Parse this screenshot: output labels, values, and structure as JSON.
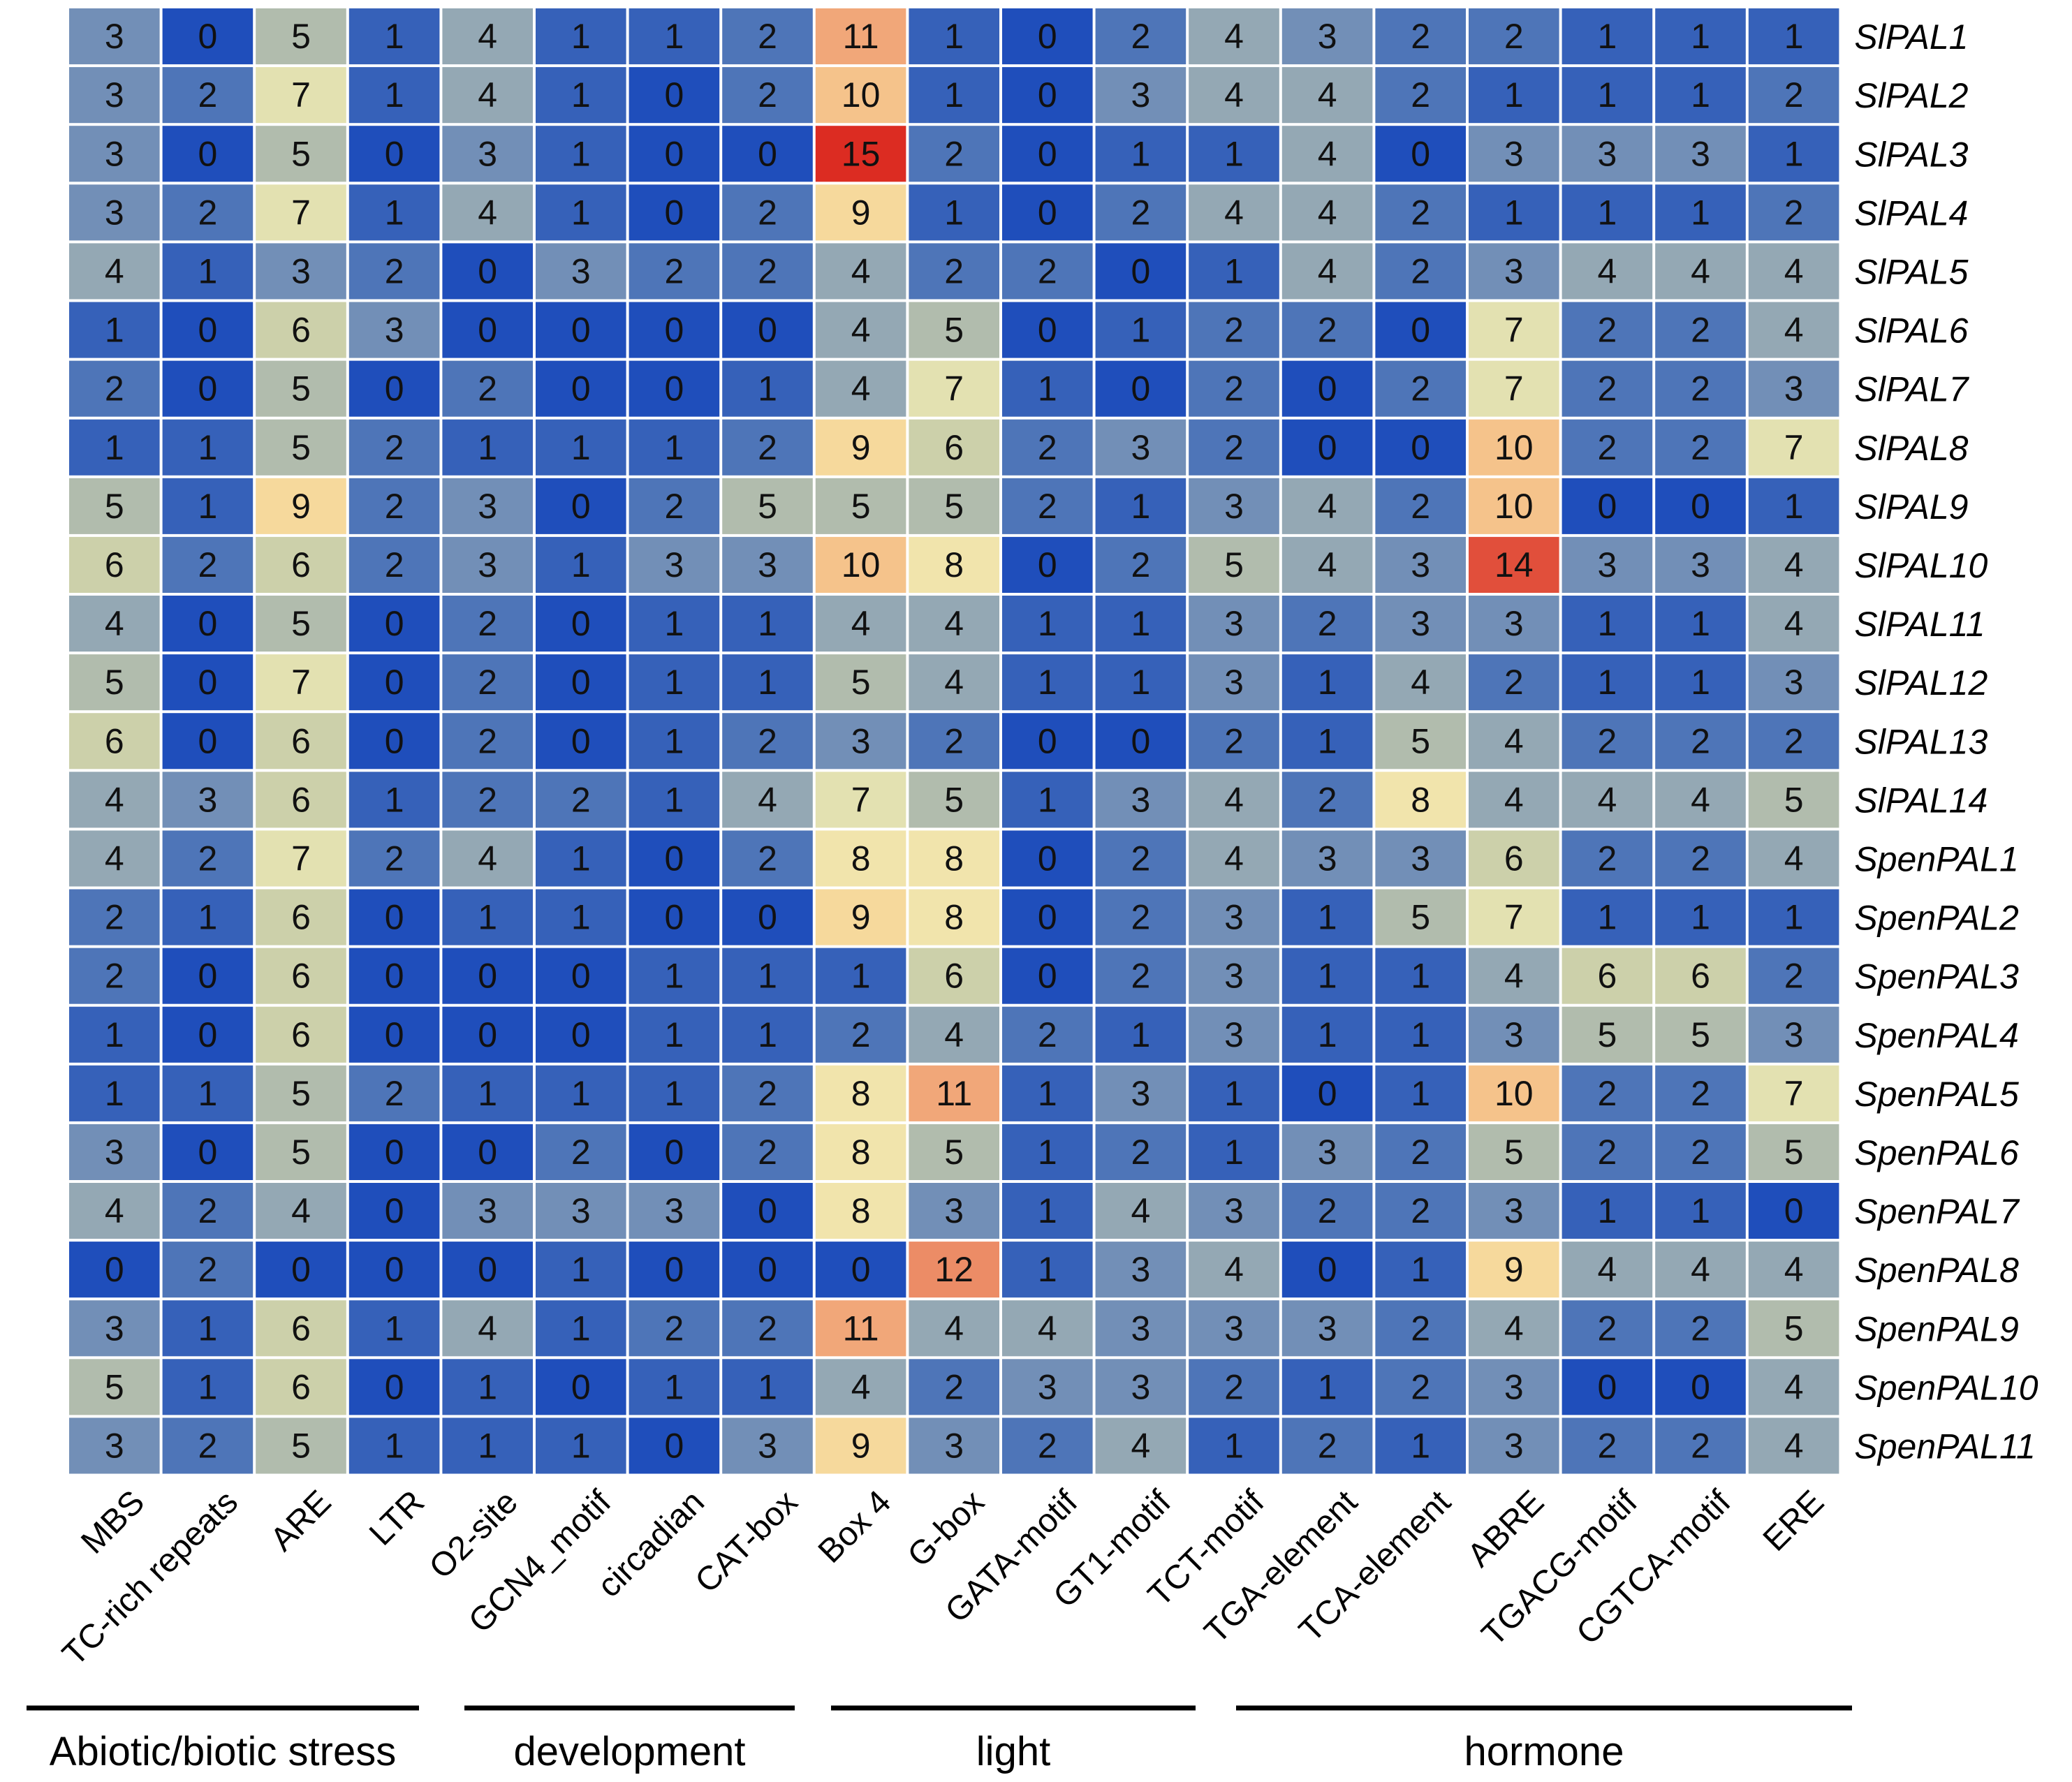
{
  "chart_data": {
    "type": "heatmap",
    "columns": [
      "MBS",
      "TC-rich repeats",
      "ARE",
      "LTR",
      "O2-site",
      "GCN4_motif",
      "circadian",
      "CAT-box",
      "Box 4",
      "G-box",
      "GATA-motif",
      "GT1-motif",
      "TCT-motif",
      "TGA-element",
      "TCA-element",
      "ABRE",
      "TGACG-motif",
      "CGTCA-motif",
      "ERE"
    ],
    "rows": [
      "SlPAL1",
      "SlPAL2",
      "SlPAL3",
      "SlPAL4",
      "SlPAL5",
      "SlPAL6",
      "SlPAL7",
      "SlPAL8",
      "SlPAL9",
      "SlPAL10",
      "SlPAL11",
      "SlPAL12",
      "SlPAL13",
      "SlPAL14",
      "SpenPAL1",
      "SpenPAL2",
      "SpenPAL3",
      "SpenPAL4",
      "SpenPAL5",
      "SpenPAL6",
      "SpenPAL7",
      "SpenPAL8",
      "SpenPAL9",
      "SpenPAL10",
      "SpenPAL11"
    ],
    "values": [
      [
        3,
        0,
        5,
        1,
        4,
        1,
        1,
        2,
        11,
        1,
        0,
        2,
        4,
        3,
        2,
        2,
        1,
        1,
        1
      ],
      [
        3,
        2,
        7,
        1,
        4,
        1,
        0,
        2,
        10,
        1,
        0,
        3,
        4,
        4,
        2,
        1,
        1,
        1,
        2
      ],
      [
        3,
        0,
        5,
        0,
        3,
        1,
        0,
        0,
        15,
        2,
        0,
        1,
        1,
        4,
        0,
        3,
        3,
        3,
        1
      ],
      [
        3,
        2,
        7,
        1,
        4,
        1,
        0,
        2,
        9,
        1,
        0,
        2,
        4,
        4,
        2,
        1,
        1,
        1,
        2
      ],
      [
        4,
        1,
        3,
        2,
        0,
        3,
        2,
        2,
        4,
        2,
        2,
        0,
        1,
        4,
        2,
        3,
        4,
        4,
        4
      ],
      [
        1,
        0,
        6,
        3,
        0,
        0,
        0,
        0,
        4,
        5,
        0,
        1,
        2,
        2,
        0,
        7,
        2,
        2,
        4
      ],
      [
        2,
        0,
        5,
        0,
        2,
        0,
        0,
        1,
        4,
        7,
        1,
        0,
        2,
        0,
        2,
        7,
        2,
        2,
        3
      ],
      [
        1,
        1,
        5,
        2,
        1,
        1,
        1,
        2,
        9,
        6,
        2,
        3,
        2,
        0,
        0,
        10,
        2,
        2,
        7
      ],
      [
        5,
        1,
        9,
        2,
        3,
        0,
        2,
        5,
        5,
        5,
        2,
        1,
        3,
        4,
        2,
        10,
        0,
        0,
        1
      ],
      [
        6,
        2,
        6,
        2,
        3,
        1,
        3,
        3,
        10,
        8,
        0,
        2,
        5,
        4,
        3,
        14,
        3,
        3,
        4
      ],
      [
        4,
        0,
        5,
        0,
        2,
        0,
        1,
        1,
        4,
        4,
        1,
        1,
        3,
        2,
        3,
        3,
        1,
        1,
        4
      ],
      [
        5,
        0,
        7,
        0,
        2,
        0,
        1,
        1,
        5,
        4,
        1,
        1,
        3,
        1,
        4,
        2,
        1,
        1,
        3
      ],
      [
        6,
        0,
        6,
        0,
        2,
        0,
        1,
        2,
        3,
        2,
        0,
        0,
        2,
        1,
        5,
        4,
        2,
        2,
        2
      ],
      [
        4,
        3,
        6,
        1,
        2,
        2,
        1,
        4,
        7,
        5,
        1,
        3,
        4,
        2,
        8,
        4,
        4,
        4,
        5
      ],
      [
        4,
        2,
        7,
        2,
        4,
        1,
        0,
        2,
        8,
        8,
        0,
        2,
        4,
        3,
        3,
        6,
        2,
        2,
        4
      ],
      [
        2,
        1,
        6,
        0,
        1,
        1,
        0,
        0,
        9,
        8,
        0,
        2,
        3,
        1,
        5,
        7,
        1,
        1,
        1
      ],
      [
        2,
        0,
        6,
        0,
        0,
        0,
        1,
        1,
        1,
        6,
        0,
        2,
        3,
        1,
        1,
        4,
        6,
        6,
        2
      ],
      [
        1,
        0,
        6,
        0,
        0,
        0,
        1,
        1,
        2,
        4,
        2,
        1,
        3,
        1,
        1,
        3,
        5,
        5,
        3
      ],
      [
        1,
        1,
        5,
        2,
        1,
        1,
        1,
        2,
        8,
        11,
        1,
        3,
        1,
        0,
        1,
        10,
        2,
        2,
        7
      ],
      [
        3,
        0,
        5,
        0,
        0,
        2,
        0,
        2,
        8,
        5,
        1,
        2,
        1,
        3,
        2,
        5,
        2,
        2,
        5
      ],
      [
        4,
        2,
        4,
        0,
        3,
        3,
        3,
        0,
        8,
        3,
        1,
        4,
        3,
        2,
        2,
        3,
        1,
        1,
        0
      ],
      [
        0,
        2,
        0,
        0,
        0,
        1,
        0,
        0,
        0,
        12,
        1,
        3,
        4,
        0,
        1,
        9,
        4,
        4,
        4
      ],
      [
        3,
        1,
        6,
        1,
        4,
        1,
        2,
        2,
        11,
        4,
        4,
        3,
        3,
        3,
        2,
        4,
        2,
        2,
        5
      ],
      [
        5,
        1,
        6,
        0,
        1,
        0,
        1,
        1,
        4,
        2,
        3,
        3,
        2,
        1,
        2,
        3,
        0,
        0,
        4
      ],
      [
        3,
        2,
        5,
        1,
        1,
        1,
        0,
        3,
        9,
        3,
        2,
        4,
        1,
        2,
        1,
        3,
        2,
        2,
        4
      ]
    ],
    "color_range": [
      0,
      15
    ],
    "colorscale": [
      "#1f4ebb",
      "#4a72b8",
      "#8da3b6",
      "#c3c9a8",
      "#eeeab4",
      "#f8d596",
      "#f0a074",
      "#e66e50",
      "#dc2c22"
    ],
    "groups": [
      {
        "label": "Abiotic/biotic stress",
        "columns": [
          "MBS",
          "TC-rich repeats",
          "ARE",
          "LTR"
        ]
      },
      {
        "label": "development",
        "columns": [
          "O2-site",
          "GCN4_motif",
          "circadian",
          "CAT-box"
        ]
      },
      {
        "label": "light",
        "columns": [
          "Box 4",
          "G-box",
          "GATA-motif",
          "GT1-motif"
        ]
      },
      {
        "label": "hormone",
        "columns": [
          "TCT-motif",
          "TGA-element",
          "TCA-element",
          "ABRE",
          "TGACG-motif",
          "CGTCA-motif",
          "ERE"
        ]
      }
    ]
  }
}
